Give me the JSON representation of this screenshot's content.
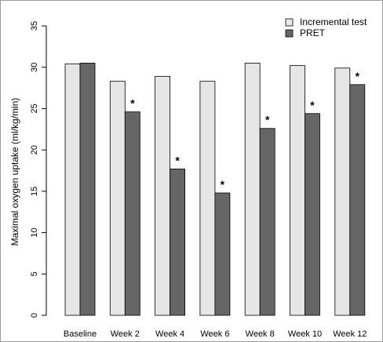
{
  "chart_data": {
    "type": "bar",
    "ylabel": "Maximal oxygen uptake (ml/kg/min)",
    "xlabel": "",
    "ylim": [
      0,
      35
    ],
    "yticks": [
      "0",
      "5",
      "10",
      "15",
      "20",
      "25",
      "30",
      "35"
    ],
    "categories": [
      "Baseline",
      "Week 2",
      "Week 4",
      "Week 6",
      "Week 8",
      "Week 10",
      "Week 12"
    ],
    "series": [
      {
        "name": "Incremental test",
        "color": "#e6e6e6",
        "values": [
          30.4,
          28.3,
          28.9,
          28.3,
          30.5,
          30.2,
          29.9
        ]
      },
      {
        "name": "PRET",
        "color": "#666666",
        "values": [
          30.5,
          24.6,
          17.7,
          14.8,
          22.6,
          24.4,
          27.9
        ]
      }
    ],
    "annotations": [
      "",
      "*",
      "*",
      "*",
      "*",
      "*",
      "*"
    ],
    "legend_position": "top-right",
    "grid": false
  }
}
